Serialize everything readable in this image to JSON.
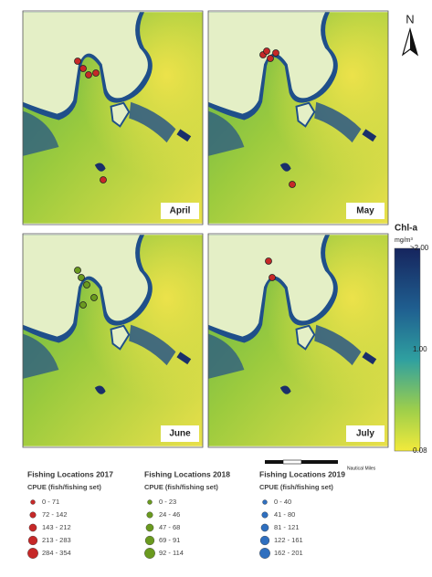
{
  "panels": [
    "April",
    "May",
    "June",
    "July"
  ],
  "north": "N",
  "colorbar": {
    "title": "Chl-a",
    "unit": "mg/m³",
    "labels": [
      ">2.00",
      "1.00",
      "0.08"
    ]
  },
  "scale_bar": {
    "unit": "Nautical Miles"
  },
  "legends": [
    {
      "title": "Fishing Locations 2017",
      "subtitle": "CPUE (fish/fishing set)",
      "color": "#c62828",
      "items": [
        "0 - 71",
        "72 - 142",
        "143 - 212",
        "213 - 283",
        "284 - 354"
      ]
    },
    {
      "title": "Fishing Locations 2018",
      "subtitle": "CPUE (fish/fishing set)",
      "color": "#6a9a1f",
      "items": [
        "0 - 23",
        "24 - 46",
        "47 - 68",
        "69 - 91",
        "92 - 114"
      ]
    },
    {
      "title": "Fishing Locations 2019",
      "subtitle": "CPUE (fish/fishing set)",
      "color": "#2f6fbf",
      "items": [
        "0 - 40",
        "41 - 80",
        "81 - 121",
        "122 - 161",
        "162 - 201"
      ]
    }
  ]
}
